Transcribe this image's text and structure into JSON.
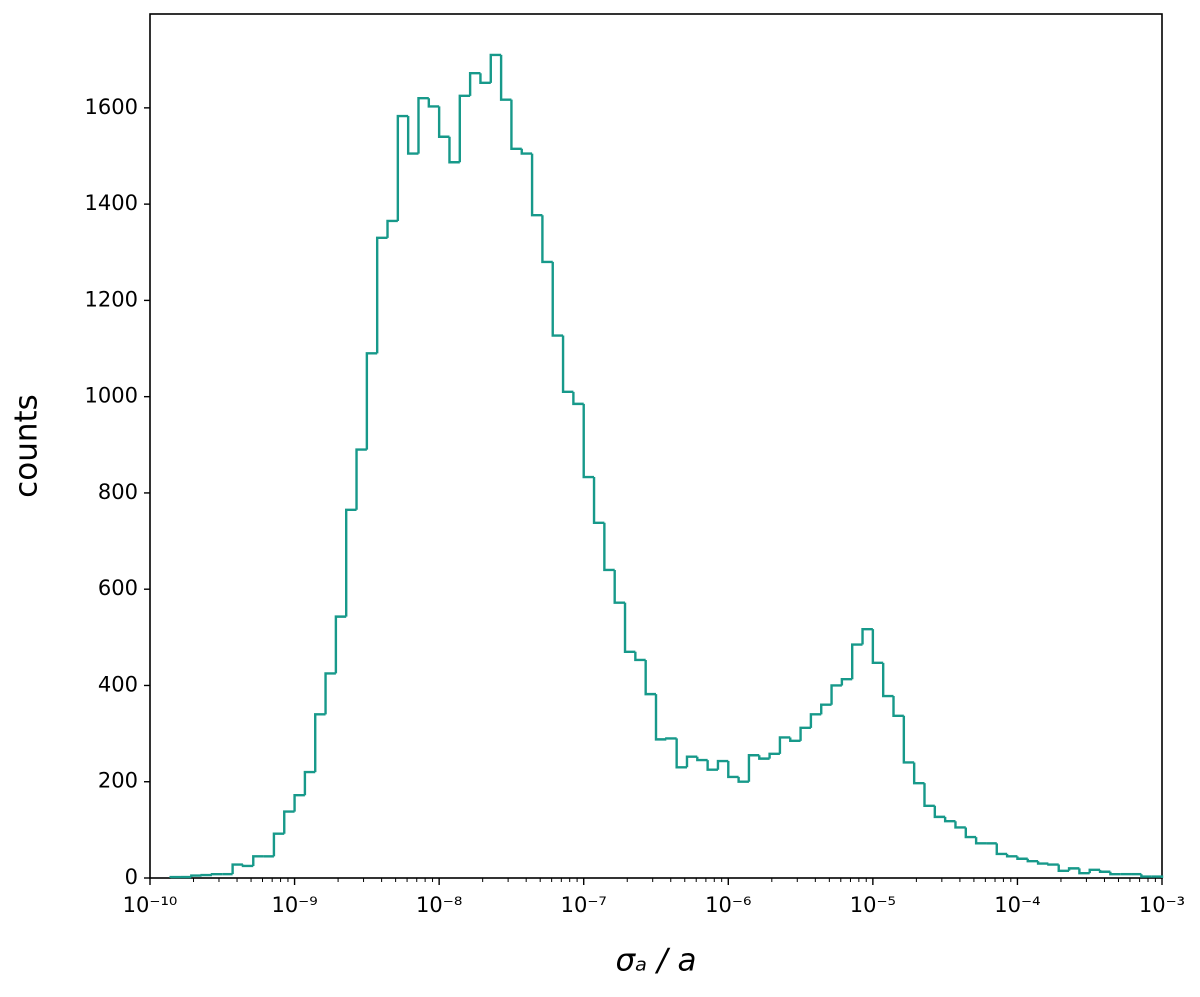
{
  "chart_data": {
    "type": "histogram",
    "xlabel": "σₐ / a",
    "ylabel": "counts",
    "color": "#17998a",
    "xscale": "log",
    "minor_ticks": true,
    "bins": [
      1.3895e-10,
      1.6379e-10,
      1.9307e-10,
      2.2758e-10,
      2.6827e-10,
      3.1623e-10,
      3.7276e-10,
      4.394e-10,
      5.1795e-10,
      6.1054e-10,
      7.1969e-10,
      8.4834e-10,
      1e-09,
      1.1788e-09,
      1.3895e-09,
      1.6379e-09,
      1.9307e-09,
      2.2758e-09,
      2.6827e-09,
      3.1623e-09,
      3.7276e-09,
      4.394e-09,
      5.1795e-09,
      6.1054e-09,
      7.1969e-09,
      8.4834e-09,
      1e-08,
      1.1788e-08,
      1.3895e-08,
      1.6379e-08,
      1.9307e-08,
      2.2758e-08,
      2.6827e-08,
      3.1623e-08,
      3.7276e-08,
      4.394e-08,
      5.1795e-08,
      6.1054e-08,
      7.1969e-08,
      8.4834e-08,
      1e-07,
      1.1788e-07,
      1.3895e-07,
      1.6379e-07,
      1.9307e-07,
      2.2758e-07,
      2.6827e-07,
      3.1623e-07,
      3.7276e-07,
      4.394e-07,
      5.1795e-07,
      6.1054e-07,
      7.1969e-07,
      8.4834e-07,
      1e-06,
      1.1788e-06,
      1.3895e-06,
      1.6379e-06,
      1.9307e-06,
      2.2758e-06,
      2.6827e-06,
      3.1623e-06,
      3.7276e-06,
      4.394e-06,
      5.1795e-06,
      6.1054e-06,
      7.1969e-06,
      8.4834e-06,
      1e-05,
      1.1788e-05,
      1.3895e-05,
      1.6379e-05,
      1.9307e-05,
      2.2758e-05,
      2.6827e-05,
      3.1623e-05,
      3.7276e-05,
      4.394e-05,
      5.1795e-05,
      6.1054e-05,
      7.1969e-05,
      8.4834e-05,
      0.0001,
      0.00011788,
      0.00013895,
      0.00016379,
      0.00019307,
      0.00022758,
      0.00026827,
      0.00031623,
      0.00037276,
      0.0004394,
      0.00051795,
      0.00061054,
      0.00071969,
      0.00084834,
      0.001
    ],
    "values": [
      2,
      2,
      5,
      6,
      8,
      8,
      28,
      25,
      45,
      45,
      92,
      138,
      172,
      220,
      340,
      425,
      543,
      765,
      890,
      1090,
      1330,
      1365,
      1583,
      1505,
      1620,
      1603,
      1540,
      1487,
      1625,
      1672,
      1652,
      1710,
      1617,
      1515,
      1505,
      1377,
      1280,
      1127,
      1010,
      985,
      833,
      738,
      640,
      572,
      470,
      453,
      382,
      288,
      290,
      230,
      252,
      245,
      225,
      243,
      210,
      200,
      255,
      248,
      258,
      292,
      285,
      312,
      340,
      360,
      400,
      413,
      485,
      517,
      447,
      378,
      337,
      240,
      197,
      150,
      127,
      118,
      105,
      85,
      72,
      72,
      50,
      45,
      40,
      35,
      30,
      28,
      15,
      20,
      10,
      17,
      13,
      8,
      8,
      8,
      3,
      3
    ],
    "xlim": [
      1e-10,
      0.001
    ],
    "xticks": [
      {
        "value": 1e-10,
        "label": "10⁻¹⁰"
      },
      {
        "value": 1e-09,
        "label": "10⁻⁹"
      },
      {
        "value": 1e-08,
        "label": "10⁻⁸"
      },
      {
        "value": 1e-07,
        "label": "10⁻⁷"
      },
      {
        "value": 1e-06,
        "label": "10⁻⁶"
      },
      {
        "value": 1e-05,
        "label": "10⁻⁵"
      },
      {
        "value": 0.0001,
        "label": "10⁻⁴"
      },
      {
        "value": 0.001,
        "label": "10⁻³"
      }
    ],
    "ylim": [
      0,
      1795
    ],
    "yticks": [
      0,
      200,
      400,
      600,
      800,
      1000,
      1200,
      1400,
      1600
    ]
  }
}
